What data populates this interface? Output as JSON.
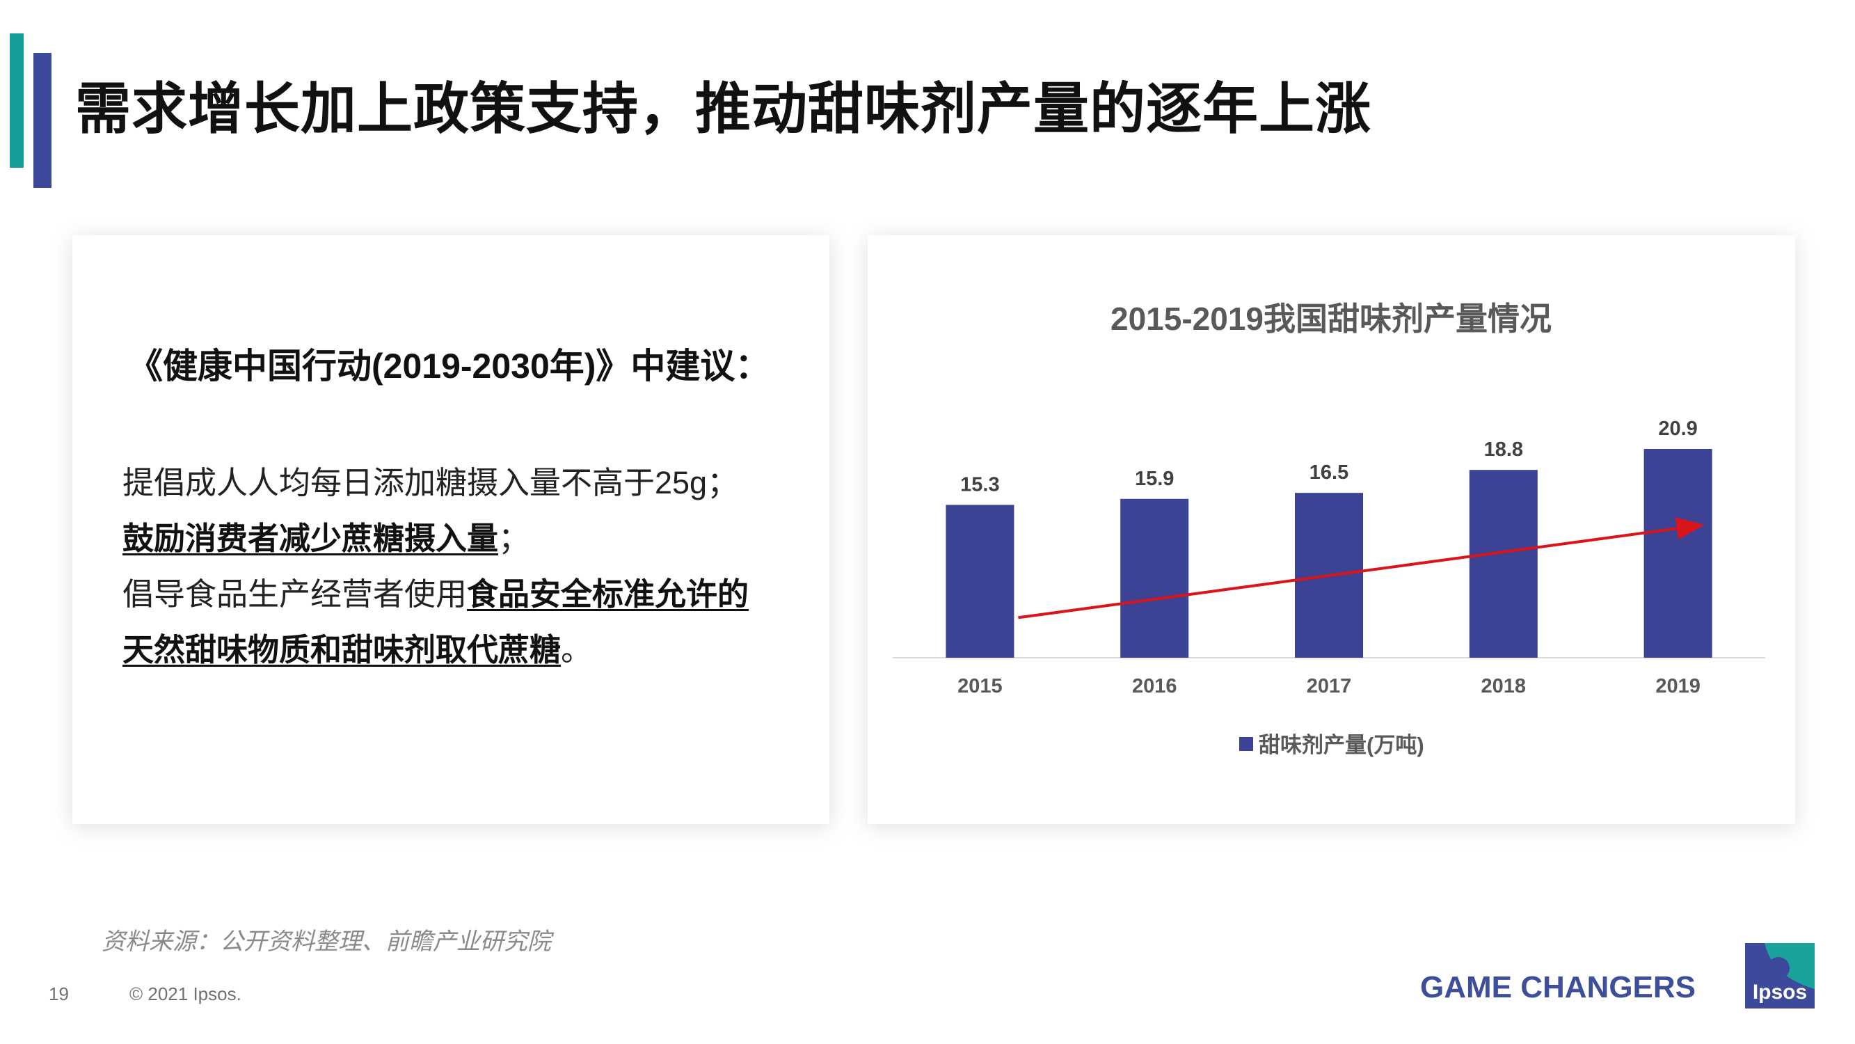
{
  "colors": {
    "teal": "#139e9b",
    "navy": "#3d4a9b",
    "bar": "#3c4394",
    "trend": "#d9141b",
    "tagline": "#3d4f9a"
  },
  "page": {
    "title": "需求增长加上政策支持，推动甜味剂产量的逐年上涨"
  },
  "policy": {
    "heading": "《健康中国行动(2019-2030年)》中建议：",
    "line1": "提倡成人人均每日添加糖摄入量不高于25g；",
    "line2_emph": "鼓励消费者减少蔗糖摄入量",
    "line2_tail": "；",
    "line3_plain": "倡导食品生产经营者使用",
    "line3_emph": "食品安全标准允许的",
    "line4_emph": "天然甜味物质和甜味剂取代蔗糖",
    "line4_tail": "。"
  },
  "chart_data": {
    "type": "bar",
    "title": "2015-2019我国甜味剂产量情况",
    "categories": [
      "2015",
      "2016",
      "2017",
      "2018",
      "2019"
    ],
    "series": [
      {
        "name": "甜味剂产量(万吨)",
        "values": [
          15.3,
          15.9,
          16.5,
          18.8,
          20.9
        ]
      }
    ],
    "ylim": [
      0,
      20.9
    ],
    "data_labels": true,
    "trend_arrow": true,
    "legend": "bottom",
    "grid": false
  },
  "footer": {
    "source": "资料来源：公开资料整理、前瞻产业研究院",
    "page_number": "19",
    "copyright": "© 2021 Ipsos.",
    "tagline": "GAME CHANGERS",
    "logo_text": "Ipsos"
  }
}
